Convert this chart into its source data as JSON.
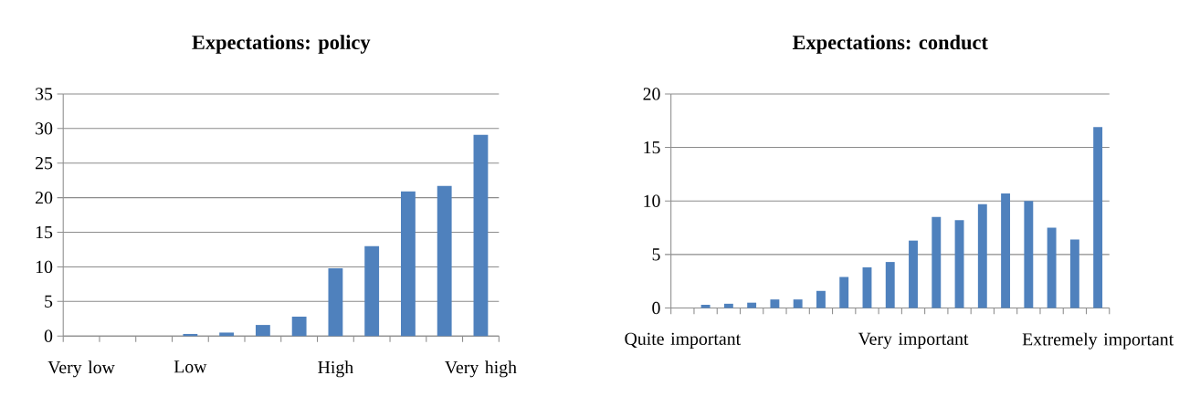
{
  "chart_data": [
    {
      "type": "bar",
      "title": "Expectations: policy",
      "categories": [
        "Very low",
        null,
        null,
        "Low",
        null,
        null,
        null,
        "High",
        null,
        null,
        null,
        "Very high"
      ],
      "values": [
        0,
        0,
        0,
        0.3,
        0.5,
        1.6,
        2.8,
        9.8,
        13,
        20.9,
        21.7,
        29.1
      ],
      "color": "#4f81bd",
      "ylim": [
        0,
        35
      ],
      "yticks": [
        0,
        5,
        10,
        15,
        20,
        25,
        30,
        35
      ],
      "grid": "y"
    },
    {
      "type": "bar",
      "title": "Expectations: conduct",
      "categories": [
        "Quite important",
        null,
        null,
        null,
        null,
        null,
        null,
        null,
        null,
        null,
        "Very important",
        null,
        null,
        null,
        null,
        null,
        null,
        null,
        "Extremely important"
      ],
      "values": [
        0,
        0.3,
        0.4,
        0.5,
        0.8,
        0.8,
        1.6,
        2.9,
        3.8,
        4.3,
        6.3,
        8.5,
        8.2,
        9.7,
        10.7,
        10.0,
        7.5,
        6.4,
        16.9
      ],
      "color": "#4f81bd",
      "ylim": [
        0,
        20
      ],
      "yticks": [
        0,
        5,
        10,
        15,
        20
      ],
      "grid": "y"
    }
  ]
}
